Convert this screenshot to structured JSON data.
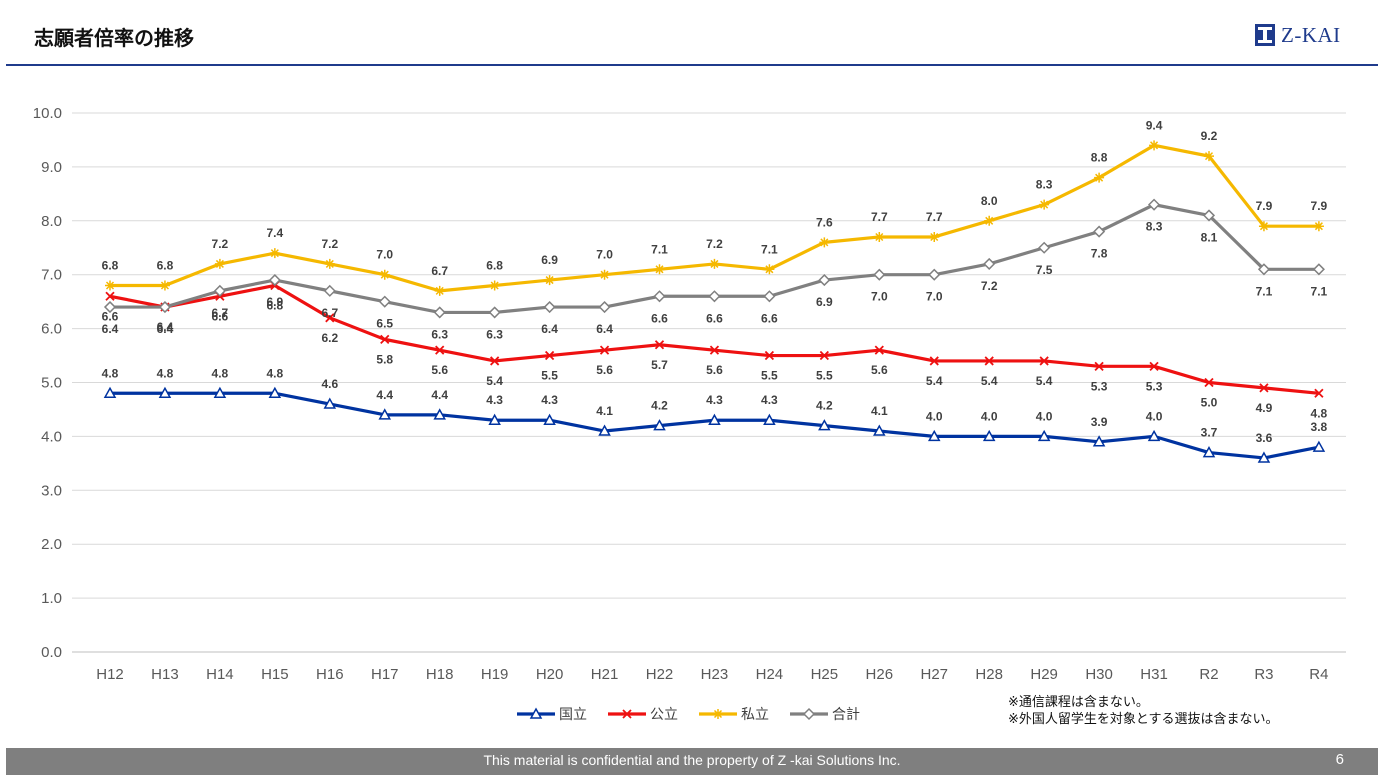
{
  "header": {
    "title": "志願者倍率の推移",
    "logo_text": "Z-KAI"
  },
  "chart_data": {
    "type": "line",
    "categories": [
      "H12",
      "H13",
      "H14",
      "H15",
      "H16",
      "H17",
      "H18",
      "H19",
      "H20",
      "H21",
      "H22",
      "H23",
      "H24",
      "H25",
      "H26",
      "H27",
      "H28",
      "H29",
      "H30",
      "H31",
      "R2",
      "R3",
      "R4"
    ],
    "ylim": [
      0,
      10
    ],
    "yticks": [
      "0.0",
      "1.0",
      "2.0",
      "3.0",
      "4.0",
      "5.0",
      "6.0",
      "7.0",
      "8.0",
      "9.0",
      "10.0"
    ],
    "grid": true,
    "legend_position": "bottom",
    "series": [
      {
        "name": "国立",
        "color": "#0033a0",
        "marker": "triangle",
        "values": [
          4.8,
          4.8,
          4.8,
          4.8,
          4.6,
          4.4,
          4.4,
          4.3,
          4.3,
          4.1,
          4.2,
          4.3,
          4.3,
          4.2,
          4.1,
          4.0,
          4.0,
          4.0,
          3.9,
          4.0,
          3.7,
          3.6,
          3.8
        ]
      },
      {
        "name": "公立",
        "color": "#ee1111",
        "marker": "x",
        "values": [
          6.6,
          6.4,
          6.6,
          6.8,
          6.2,
          5.8,
          5.6,
          5.4,
          5.5,
          5.6,
          5.7,
          5.6,
          5.5,
          5.5,
          5.6,
          5.4,
          5.4,
          5.4,
          5.3,
          5.3,
          5.0,
          4.9,
          4.8
        ]
      },
      {
        "name": "私立",
        "color": "#f5b800",
        "marker": "star",
        "values": [
          6.8,
          6.8,
          7.2,
          7.4,
          7.2,
          7.0,
          6.7,
          6.8,
          6.9,
          7.0,
          7.1,
          7.2,
          7.1,
          7.6,
          7.7,
          7.7,
          8.0,
          8.3,
          8.8,
          9.4,
          9.2,
          7.9,
          7.9
        ]
      },
      {
        "name": "合計",
        "color": "#808080",
        "marker": "diamond",
        "values": [
          6.4,
          6.4,
          6.7,
          6.9,
          6.7,
          6.5,
          6.3,
          6.3,
          6.4,
          6.4,
          6.6,
          6.6,
          6.6,
          6.9,
          7.0,
          7.0,
          7.2,
          7.5,
          7.8,
          8.3,
          8.1,
          7.1,
          7.1
        ]
      }
    ]
  },
  "notes": [
    "※通信課程は含まない。",
    "※外国人留学生を対象とする選抜は含まない。"
  ],
  "footer": {
    "text": "This material is confidential and the property of  Z -kai Solutions Inc.",
    "page_number": "6"
  }
}
